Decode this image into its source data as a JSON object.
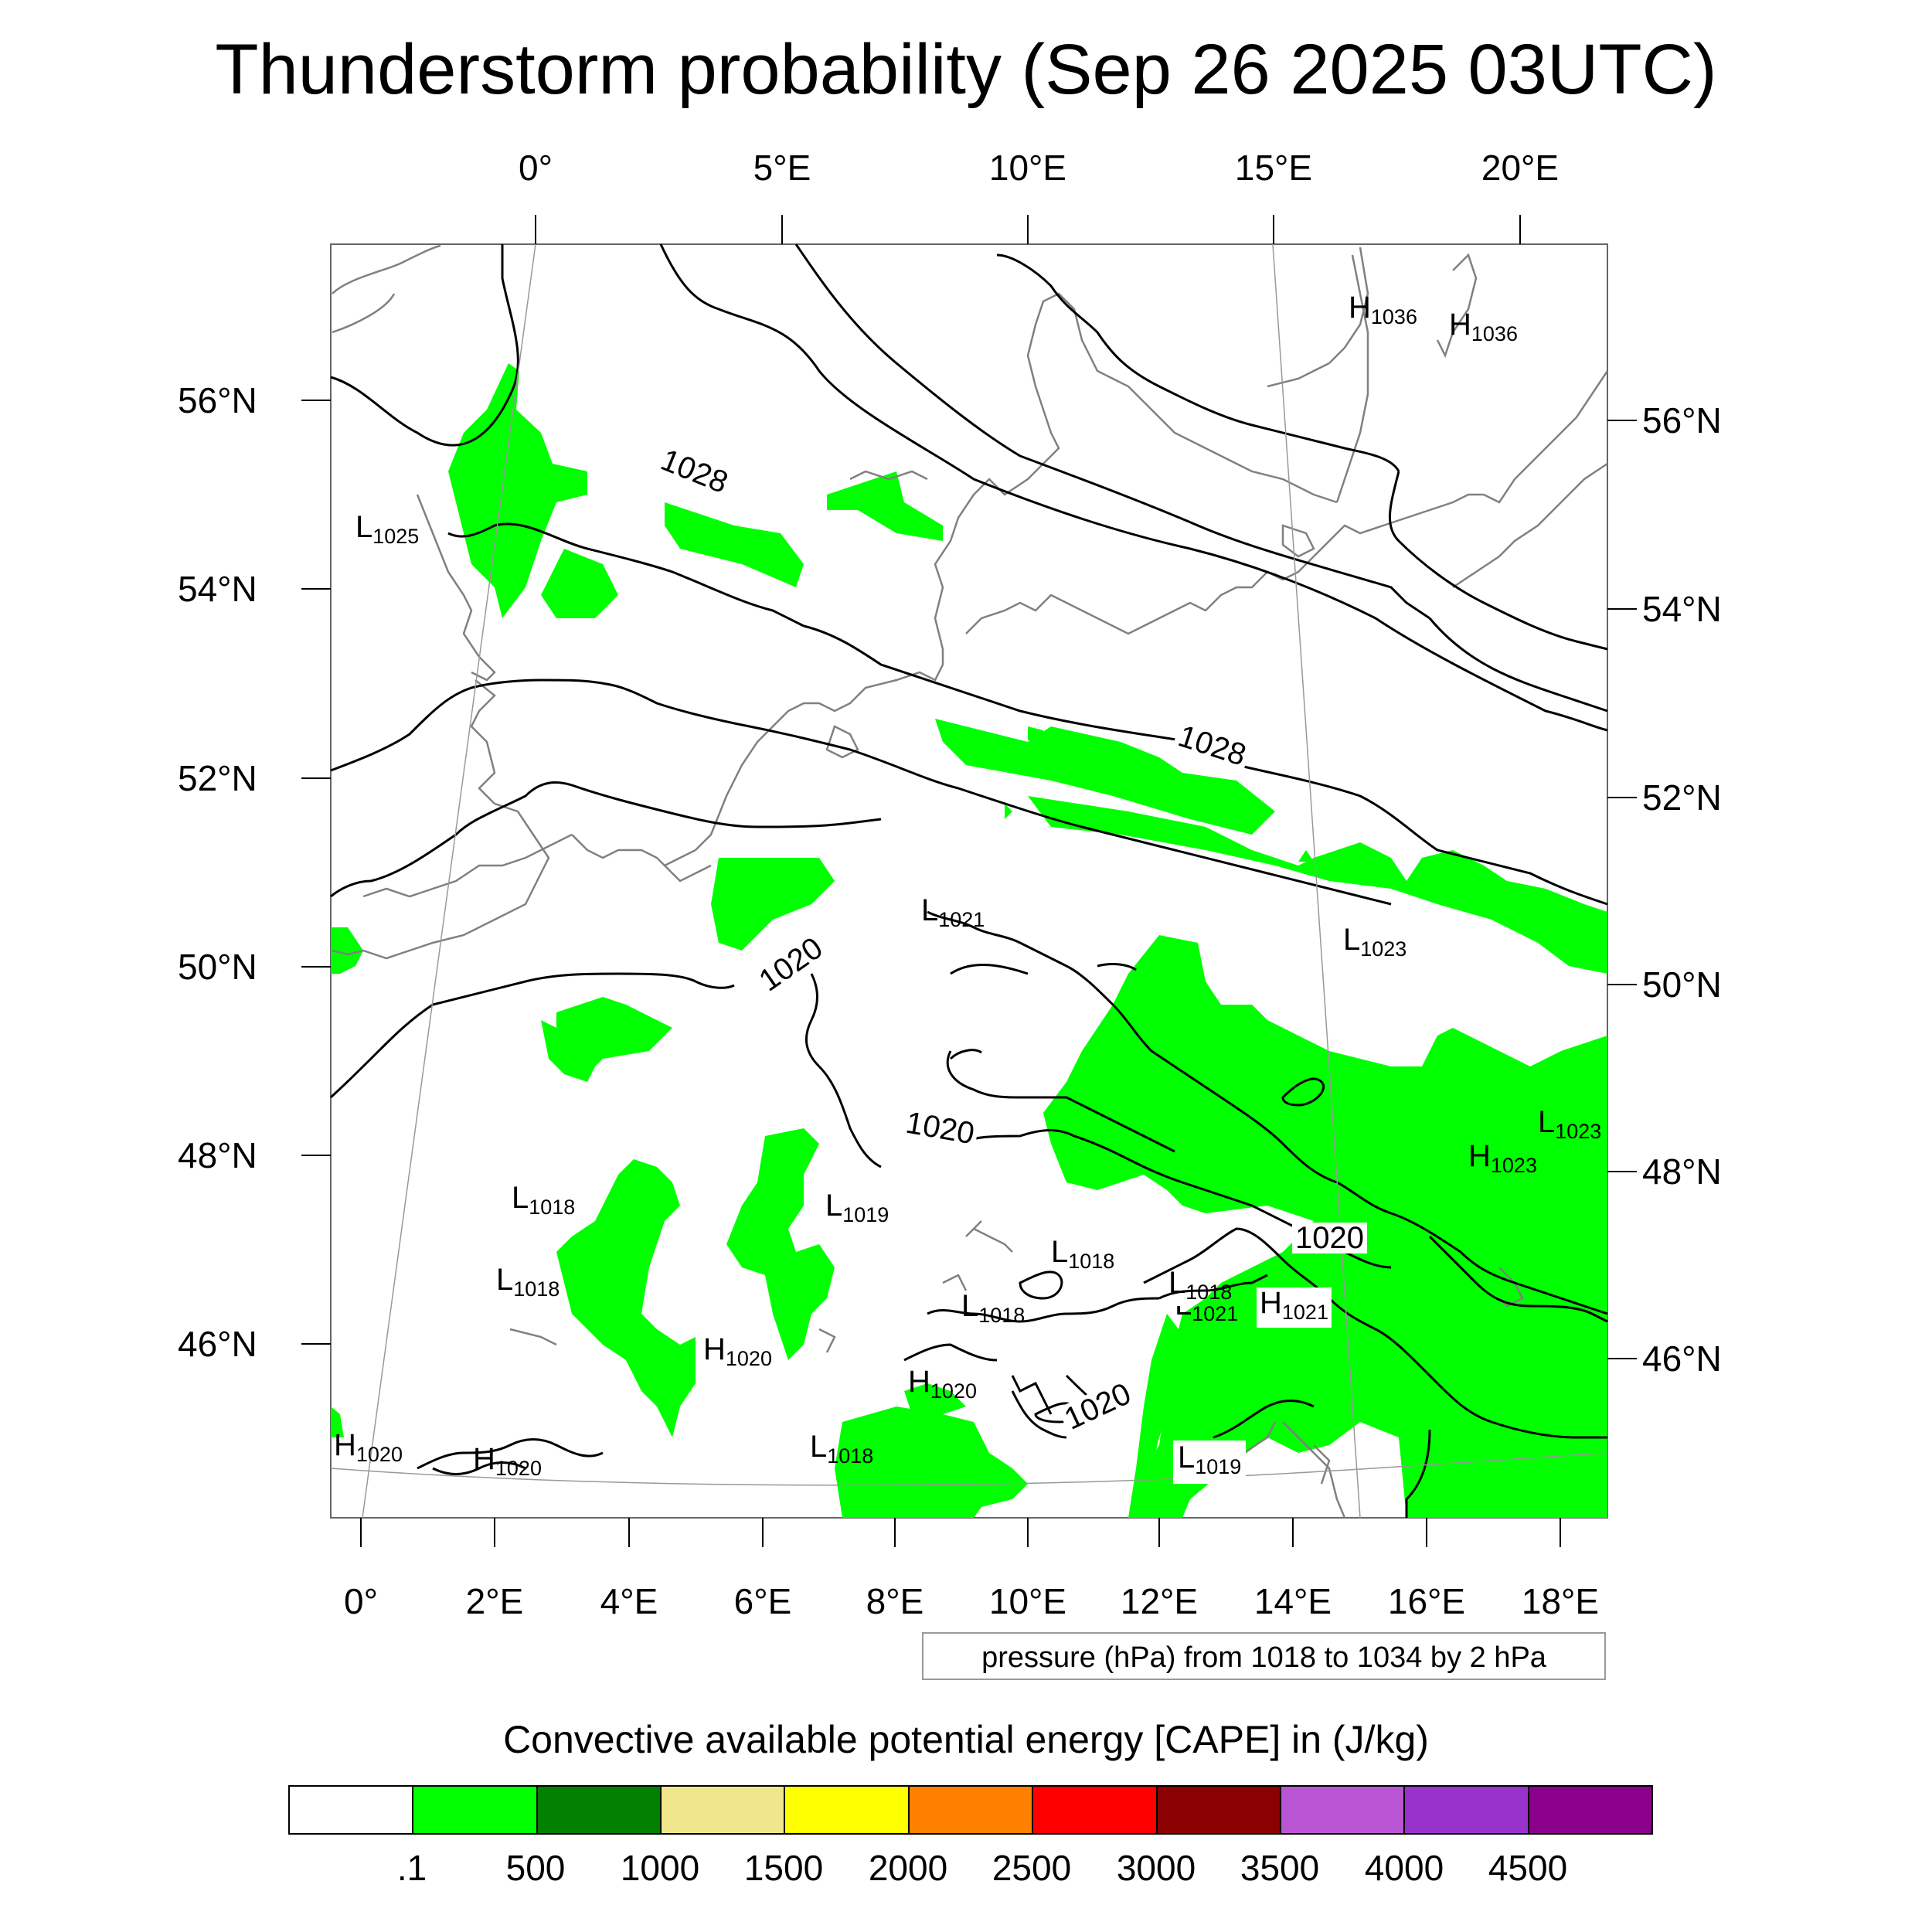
{
  "title": "Thunderstorm probability (Sep 26 2025 03UTC)",
  "axes": {
    "top_lon": [
      "0°",
      "5°E",
      "10°E",
      "15°E",
      "20°E"
    ],
    "bottom_lon": [
      "0°",
      "2°E",
      "4°E",
      "6°E",
      "8°E",
      "10°E",
      "12°E",
      "14°E",
      "16°E",
      "18°E"
    ],
    "left_lat": [
      "56°N",
      "54°N",
      "52°N",
      "50°N",
      "48°N",
      "46°N"
    ],
    "right_lat": [
      "56°N",
      "54°N",
      "52°N",
      "50°N",
      "48°N",
      "46°N"
    ]
  },
  "isobar_labels": [
    "1028",
    "1028",
    "1020",
    "1020",
    "1020",
    "1020"
  ],
  "pressure_systems": [
    {
      "type": "H",
      "value": "1036"
    },
    {
      "type": "H",
      "value": "1036"
    },
    {
      "type": "L",
      "value": "1025"
    },
    {
      "type": "L",
      "value": "1021"
    },
    {
      "type": "L",
      "value": "1023"
    },
    {
      "type": "L",
      "value": "1023"
    },
    {
      "type": "H",
      "value": "1023"
    },
    {
      "type": "L",
      "value": "1018"
    },
    {
      "type": "L",
      "value": "1019"
    },
    {
      "type": "L",
      "value": "1018"
    },
    {
      "type": "L",
      "value": "1018"
    },
    {
      "type": "L",
      "value": "1018"
    },
    {
      "type": "L",
      "value": "1018"
    },
    {
      "type": "L",
      "value": "1021"
    },
    {
      "type": "H",
      "value": "1021"
    },
    {
      "type": "H",
      "value": "1020"
    },
    {
      "type": "H",
      "value": "1020"
    },
    {
      "type": "L",
      "value": "1018"
    },
    {
      "type": "H",
      "value": "1020"
    },
    {
      "type": "H",
      "value": "1020"
    },
    {
      "type": "L",
      "value": "1019"
    }
  ],
  "info_box": "pressure (hPa) from 1018 to 1034 by 2 hPa",
  "colorbar": {
    "title": "Convective available potential energy [CAPE] in (J/kg)",
    "colors": [
      "#ffffff",
      "#00ff00",
      "#007f00",
      "#f0e68c",
      "#ffff00",
      "#ff8000",
      "#ff0000",
      "#8b0000",
      "#ba55d3",
      "#9932cc",
      "#8b008b"
    ],
    "labels": [
      ".1",
      "500",
      "1000",
      "1500",
      "2000",
      "2500",
      "3000",
      "3500",
      "4000",
      "4500"
    ]
  },
  "colors": {
    "cape_low": "#00ff00",
    "isobar": "#000000",
    "coastline": "#808080"
  }
}
